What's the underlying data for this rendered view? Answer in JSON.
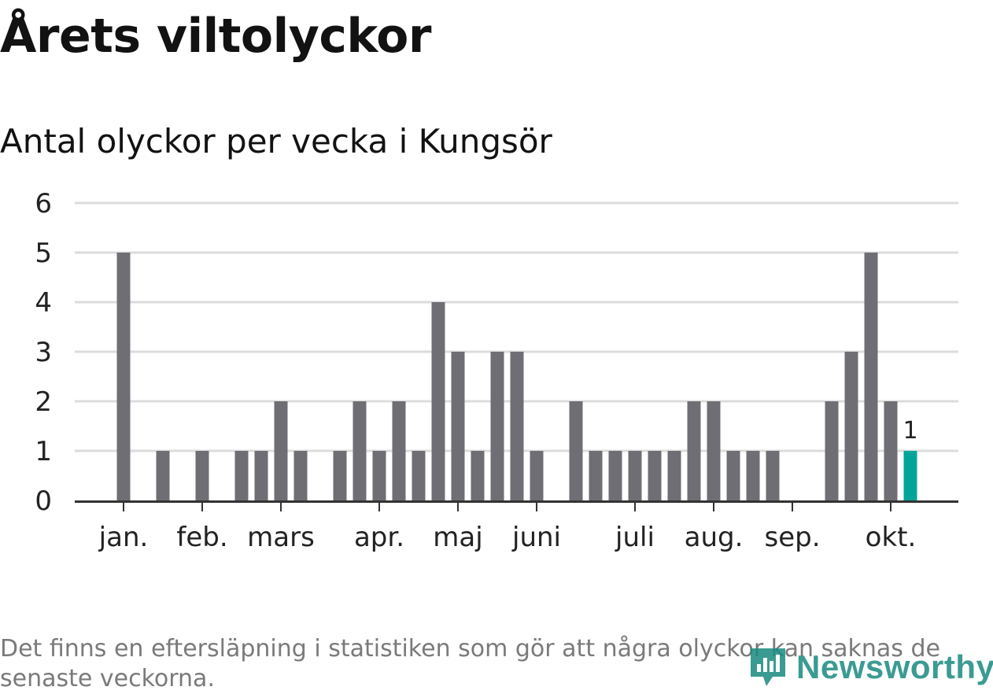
{
  "title": "Årets viltolyckor",
  "subtitle": "Antal olyckor per vecka i Kungsör",
  "footnote": "Det finns en eftersläpning i statistiken som gör att några olyckor kan saknas de senaste veckorna.",
  "brand": {
    "name": "Newsworthy",
    "icon": "newsworthy-logo-icon"
  },
  "colors": {
    "bar": "#6f6e74",
    "highlight": "#00a598",
    "grid": "#dcdcdc",
    "axis": "#333333",
    "brand": "#1a8a80"
  },
  "chart_data": {
    "type": "bar",
    "title": "Antal olyckor per vecka i Kungsör",
    "xlabel": "",
    "ylabel": "",
    "ylim": [
      0,
      6
    ],
    "yticks": [
      0,
      1,
      2,
      3,
      4,
      5,
      6
    ],
    "grid": true,
    "weeks": [
      1,
      2,
      3,
      4,
      5,
      6,
      7,
      8,
      9,
      10,
      11,
      12,
      13,
      14,
      15,
      16,
      17,
      18,
      19,
      20,
      21,
      22,
      23,
      24,
      25,
      26,
      27,
      28,
      29,
      30,
      31,
      32,
      33,
      34,
      35,
      36,
      37,
      38,
      39,
      40,
      41
    ],
    "values": [
      5,
      0,
      1,
      0,
      1,
      0,
      1,
      1,
      2,
      1,
      0,
      1,
      2,
      1,
      2,
      1,
      4,
      3,
      1,
      3,
      3,
      1,
      0,
      2,
      1,
      1,
      1,
      1,
      1,
      2,
      2,
      1,
      1,
      1,
      0,
      0,
      2,
      3,
      5,
      2,
      1
    ],
    "highlight_index": 40,
    "data_labels": [
      {
        "index": 40,
        "text": "1"
      }
    ],
    "month_labels": [
      {
        "label": "jan.",
        "week": 1
      },
      {
        "label": "feb.",
        "week": 5
      },
      {
        "label": "mars",
        "week": 9
      },
      {
        "label": "apr.",
        "week": 14
      },
      {
        "label": "maj",
        "week": 18
      },
      {
        "label": "juni",
        "week": 22
      },
      {
        "label": "juli",
        "week": 27
      },
      {
        "label": "aug.",
        "week": 31
      },
      {
        "label": "sep.",
        "week": 35
      },
      {
        "label": "okt.",
        "week": 40
      }
    ]
  }
}
